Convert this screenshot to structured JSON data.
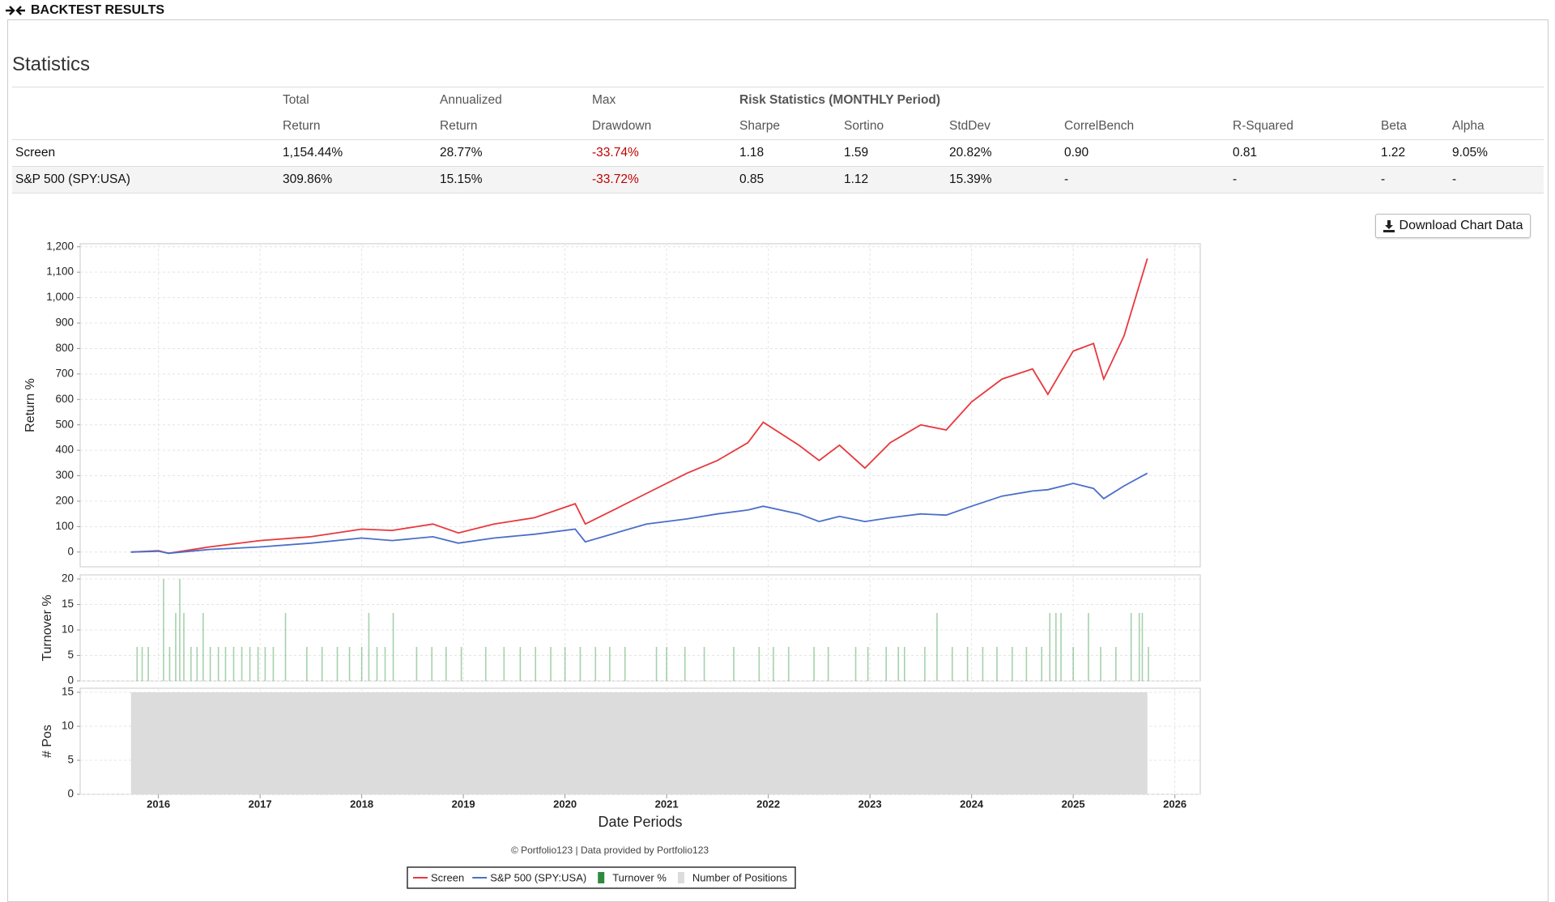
{
  "header": {
    "title": "BACKTEST RESULTS"
  },
  "statistics": {
    "title": "Statistics",
    "risk_heading": "Risk Statistics (MONTHLY Period)",
    "columns": [
      {
        "top": "Total",
        "bottom": "Return"
      },
      {
        "top": "Annualized",
        "bottom": "Return"
      },
      {
        "top": "Max",
        "bottom": "Drawdown"
      },
      {
        "bottom": "Sharpe"
      },
      {
        "bottom": "Sortino"
      },
      {
        "bottom": "StdDev"
      },
      {
        "bottom": "CorrelBench"
      },
      {
        "bottom": "R-Squared"
      },
      {
        "bottom": "Beta"
      },
      {
        "bottom": "Alpha"
      }
    ],
    "rows": [
      {
        "name": "Screen",
        "cells": [
          "1,154.44%",
          "28.77%",
          "-33.74%",
          "1.18",
          "1.59",
          "20.82%",
          "0.90",
          "0.81",
          "1.22",
          "9.05%"
        ]
      },
      {
        "name": "S&P 500 (SPY:USA)",
        "cells": [
          "309.86%",
          "15.15%",
          "-33.72%",
          "0.85",
          "1.12",
          "15.39%",
          "-",
          "-",
          "-",
          "-"
        ]
      }
    ]
  },
  "download_button": "Download Chart Data",
  "credit": "© Portfolio123 | Data provided by Portfolio123",
  "chart_data": [
    {
      "type": "line",
      "ylabel": "Return %",
      "x": [
        2015.73,
        2016.0,
        2016.1,
        2016.5,
        2017.0,
        2017.5,
        2018.0,
        2018.3,
        2018.7,
        2018.95,
        2019.3,
        2019.7,
        2020.1,
        2020.2,
        2020.5,
        2020.8,
        2021.2,
        2021.5,
        2021.8,
        2021.95,
        2022.3,
        2022.5,
        2022.7,
        2022.95,
        2023.2,
        2023.5,
        2023.75,
        2024.0,
        2024.3,
        2024.6,
        2024.75,
        2025.0,
        2025.2,
        2025.3,
        2025.5,
        2025.73
      ],
      "series": [
        {
          "name": "Screen",
          "color": "#e8383d",
          "values": [
            0,
            5,
            -5,
            20,
            45,
            60,
            90,
            85,
            110,
            75,
            110,
            135,
            190,
            110,
            170,
            230,
            310,
            360,
            430,
            510,
            420,
            360,
            420,
            330,
            430,
            500,
            480,
            590,
            680,
            720,
            620,
            790,
            820,
            680,
            850,
            1154
          ]
        },
        {
          "name": "S&P 500 (SPY:USA)",
          "color": "#4a6fc9",
          "values": [
            0,
            3,
            -5,
            10,
            20,
            35,
            55,
            45,
            60,
            35,
            55,
            70,
            90,
            40,
            75,
            110,
            130,
            150,
            165,
            180,
            150,
            120,
            140,
            120,
            135,
            150,
            145,
            180,
            220,
            240,
            245,
            270,
            250,
            210,
            260,
            310
          ]
        }
      ],
      "xlim": [
        2015.23,
        2026.25
      ],
      "ylim": [
        -58,
        1212
      ],
      "yticks": [
        0,
        100,
        200,
        300,
        400,
        500,
        600,
        700,
        800,
        900,
        {
          "value": 1000,
          "label": "1,000"
        },
        {
          "value": 1100,
          "label": "1,100"
        },
        {
          "value": 1200,
          "label": "1,200"
        }
      ],
      "grid": true
    },
    {
      "type": "bar",
      "ylabel": "Turnover %",
      "series": [
        {
          "name": "Turnover %",
          "color": "#3a9a4a",
          "x": [
            2015.79,
            2015.84,
            2015.9,
            2016.05,
            2016.11,
            2016.17,
            2016.21,
            2016.25,
            2016.32,
            2016.38,
            2016.44,
            2016.51,
            2016.59,
            2016.66,
            2016.74,
            2016.82,
            2016.9,
            2016.98,
            2017.05,
            2017.13,
            2017.25,
            2017.46,
            2017.61,
            2017.76,
            2017.88,
            2018.0,
            2018.07,
            2018.15,
            2018.23,
            2018.31,
            2018.54,
            2018.69,
            2018.83,
            2018.98,
            2019.22,
            2019.4,
            2019.56,
            2019.71,
            2019.86,
            2020.0,
            2020.15,
            2020.3,
            2020.44,
            2020.59,
            2020.9,
            2021.0,
            2021.18,
            2021.37,
            2021.66,
            2021.91,
            2022.05,
            2022.2,
            2022.45,
            2022.59,
            2022.86,
            2022.98,
            2023.16,
            2023.28,
            2023.34,
            2023.54,
            2023.66,
            2023.81,
            2023.96,
            2024.11,
            2024.25,
            2024.4,
            2024.54,
            2024.69,
            2024.77,
            2024.83,
            2024.88,
            2025.0,
            2025.15,
            2025.27,
            2025.42,
            2025.57,
            2025.65,
            2025.68,
            2025.74
          ],
          "values": [
            6.67,
            6.67,
            6.67,
            20,
            6.67,
            13.33,
            20,
            13.33,
            6.67,
            6.67,
            13.33,
            6.67,
            6.67,
            6.67,
            6.67,
            6.67,
            6.67,
            6.67,
            6.67,
            6.67,
            13.33,
            6.67,
            6.67,
            6.67,
            6.67,
            6.67,
            13.33,
            6.67,
            6.67,
            13.33,
            6.67,
            6.67,
            6.67,
            6.67,
            6.67,
            6.67,
            6.67,
            6.67,
            6.67,
            6.67,
            6.67,
            6.67,
            6.67,
            6.67,
            6.67,
            6.67,
            6.67,
            6.67,
            6.67,
            6.67,
            6.67,
            6.67,
            6.67,
            6.67,
            6.67,
            6.67,
            6.67,
            6.67,
            6.67,
            6.67,
            13.33,
            6.67,
            6.67,
            6.67,
            6.67,
            6.67,
            6.67,
            6.67,
            13.33,
            13.33,
            13.33,
            6.67,
            13.33,
            6.67,
            6.67,
            13.33,
            13.33,
            13.33,
            6.67
          ]
        }
      ],
      "xlim": [
        2015.23,
        2026.25
      ],
      "ylim": [
        0,
        20.8
      ],
      "yticks": [
        0,
        5,
        10,
        15,
        20
      ],
      "grid": true
    },
    {
      "type": "area",
      "ylabel": "# Pos",
      "xlabel": "Date Periods",
      "series": [
        {
          "name": "Number of Positions",
          "color": "#dcdcdc",
          "x": [
            2015.73,
            2025.73
          ],
          "values": [
            15,
            15
          ]
        }
      ],
      "xlim": [
        2015.23,
        2026.25
      ],
      "ylim": [
        0,
        15.6
      ],
      "yticks": [
        0,
        5,
        10,
        15
      ],
      "xticks": [
        2016,
        2017,
        2018,
        2019,
        2020,
        2021,
        2022,
        2023,
        2024,
        2025,
        2026
      ],
      "grid": true
    }
  ]
}
